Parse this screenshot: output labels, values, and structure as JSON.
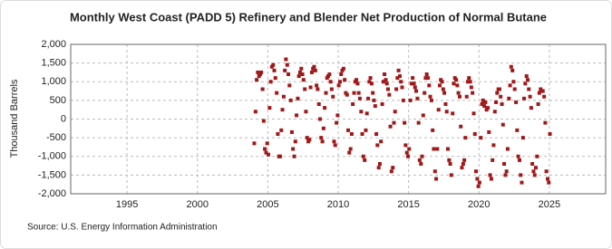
{
  "chart_data": {
    "type": "scatter",
    "title": "Monthly West Coast (PADD 5) Refinery and Blender Net Production of Normal Butane",
    "y_label": "Thousand Barrels",
    "source": "Source: U.S. Energy Information Administration",
    "color": "#a01818",
    "grid": true,
    "xlim": [
      1991,
      2029
    ],
    "ylim": [
      -2000,
      2000
    ],
    "xticks": [
      1995,
      2000,
      2005,
      2010,
      2015,
      2020,
      2025
    ],
    "yticks": [
      {
        "value": -2000,
        "label": "-2,000"
      },
      {
        "value": -1500,
        "label": "-1,500"
      },
      {
        "value": -1000,
        "label": "-1,000"
      },
      -500,
      0,
      500,
      {
        "value": 1000,
        "label": "1,000"
      },
      {
        "value": 1500,
        "label": "1,500"
      },
      {
        "value": 2000,
        "label": "2,000"
      }
    ],
    "x": [
      2004.04,
      2004.13,
      2004.21,
      2004.29,
      2004.38,
      2004.46,
      2004.54,
      2004.63,
      2004.71,
      2004.79,
      2004.88,
      2004.96,
      2005.04,
      2005.13,
      2005.21,
      2005.29,
      2005.38,
      2005.46,
      2005.54,
      2005.63,
      2005.71,
      2005.79,
      2005.88,
      2005.96,
      2006.04,
      2006.13,
      2006.21,
      2006.29,
      2006.38,
      2006.46,
      2006.54,
      2006.63,
      2006.71,
      2006.79,
      2006.88,
      2006.96,
      2007.04,
      2007.13,
      2007.21,
      2007.29,
      2007.38,
      2007.46,
      2007.54,
      2007.63,
      2007.71,
      2007.79,
      2007.88,
      2007.96,
      2008.04,
      2008.13,
      2008.21,
      2008.29,
      2008.38,
      2008.46,
      2008.54,
      2008.63,
      2008.71,
      2008.79,
      2008.88,
      2008.96,
      2009.04,
      2009.13,
      2009.21,
      2009.29,
      2009.38,
      2009.46,
      2009.54,
      2009.63,
      2009.71,
      2009.79,
      2009.88,
      2009.96,
      2010.04,
      2010.13,
      2010.21,
      2010.29,
      2010.38,
      2010.46,
      2010.54,
      2010.63,
      2010.71,
      2010.79,
      2010.88,
      2010.96,
      2011.04,
      2011.13,
      2011.21,
      2011.29,
      2011.38,
      2011.46,
      2011.54,
      2011.63,
      2011.71,
      2011.79,
      2011.88,
      2011.96,
      2012.04,
      2012.13,
      2012.21,
      2012.29,
      2012.38,
      2012.46,
      2012.54,
      2012.63,
      2012.71,
      2012.79,
      2012.88,
      2012.96,
      2013.04,
      2013.13,
      2013.21,
      2013.29,
      2013.38,
      2013.46,
      2013.54,
      2013.63,
      2013.71,
      2013.79,
      2013.88,
      2013.96,
      2014.04,
      2014.13,
      2014.21,
      2014.29,
      2014.38,
      2014.46,
      2014.54,
      2014.63,
      2014.71,
      2014.79,
      2014.88,
      2014.96,
      2015.04,
      2015.13,
      2015.21,
      2015.29,
      2015.38,
      2015.46,
      2015.54,
      2015.63,
      2015.71,
      2015.79,
      2015.88,
      2015.96,
      2016.04,
      2016.13,
      2016.21,
      2016.29,
      2016.38,
      2016.46,
      2016.54,
      2016.63,
      2016.71,
      2016.79,
      2016.88,
      2016.96,
      2017.04,
      2017.13,
      2017.21,
      2017.29,
      2017.38,
      2017.46,
      2017.54,
      2017.63,
      2017.71,
      2017.79,
      2017.88,
      2017.96,
      2018.04,
      2018.13,
      2018.21,
      2018.29,
      2018.38,
      2018.46,
      2018.54,
      2018.63,
      2018.71,
      2018.79,
      2018.88,
      2018.96,
      2019.04,
      2019.13,
      2019.21,
      2019.29,
      2019.38,
      2019.46,
      2019.54,
      2019.63,
      2019.71,
      2019.79,
      2019.88,
      2019.96,
      2020.04,
      2020.13,
      2020.21,
      2020.29,
      2020.38,
      2020.46,
      2020.54,
      2020.63,
      2020.71,
      2020.79,
      2020.88,
      2020.96,
      2021.04,
      2021.13,
      2021.21,
      2021.29,
      2021.38,
      2021.46,
      2021.54,
      2021.63,
      2021.71,
      2021.79,
      2021.88,
      2021.96,
      2022.04,
      2022.13,
      2022.21,
      2022.29,
      2022.38,
      2022.46,
      2022.54,
      2022.63,
      2022.71,
      2022.79,
      2022.88,
      2022.96,
      2023.04,
      2023.13,
      2023.21,
      2023.29,
      2023.38,
      2023.46,
      2023.54,
      2023.63,
      2023.71,
      2023.79,
      2023.88,
      2023.96,
      2024.04,
      2024.13,
      2024.21,
      2024.29,
      2024.38,
      2024.46,
      2024.54,
      2024.63,
      2024.71,
      2024.79,
      2024.88,
      2024.96,
      2025.04
    ],
    "values": [
      -650,
      200,
      1050,
      1250,
      1150,
      1200,
      1250,
      800,
      -50,
      -800,
      -900,
      -650,
      -950,
      300,
      1000,
      1400,
      1450,
      1300,
      1100,
      700,
      -400,
      -1000,
      -1000,
      -300,
      250,
      600,
      1300,
      1600,
      1450,
      1200,
      900,
      500,
      -350,
      -800,
      -1000,
      -600,
      100,
      550,
      1150,
      1250,
      1350,
      1200,
      1050,
      800,
      200,
      -500,
      -600,
      -550,
      850,
      1250,
      1350,
      1400,
      1300,
      900,
      800,
      400,
      0,
      -500,
      -600,
      -250,
      300,
      700,
      1100,
      1150,
      1200,
      1000,
      800,
      600,
      -600,
      -700,
      -100,
      100,
      900,
      1000,
      1200,
      1300,
      1350,
      1050,
      700,
      650,
      -300,
      -900,
      -800,
      -400,
      400,
      700,
      1000,
      1050,
      950,
      700,
      550,
      200,
      -400,
      -1000,
      -1100,
      -300,
      150,
      550,
      1000,
      1100,
      950,
      700,
      500,
      350,
      -400,
      -700,
      -1300,
      -1200,
      -600,
      400,
      1000,
      1200,
      1050,
      950,
      800,
      650,
      -200,
      -1400,
      -1300,
      -100,
      200,
      800,
      1100,
      1300,
      1150,
      1000,
      850,
      500,
      -100,
      -700,
      -900,
      -1000,
      -800,
      500,
      950,
      1100,
      950,
      850,
      750,
      550,
      -100,
      -1100,
      -1200,
      -1000,
      100,
      700,
      1100,
      1200,
      1100,
      900,
      600,
      500,
      -300,
      -800,
      -1400,
      -1600,
      -800,
      250,
      900,
      1050,
      1000,
      800,
      700,
      400,
      200,
      -800,
      -1100,
      -1200,
      -1500,
      150,
      950,
      1100,
      1050,
      900,
      700,
      600,
      -200,
      -1300,
      -1200,
      -1100,
      -500,
      600,
      1000,
      1100,
      1000,
      850,
      700,
      150,
      -400,
      -1400,
      -1600,
      -1800,
      -1700,
      -500,
      400,
      500,
      350,
      450,
      250,
      300,
      -350,
      -1500,
      -1600,
      -1100,
      -700,
      200,
      450,
      700,
      800,
      800,
      600,
      400,
      -150,
      -1200,
      -1500,
      -1400,
      -800,
      550,
      900,
      1400,
      1300,
      1000,
      800,
      450,
      -300,
      -1000,
      -1100,
      -1500,
      -1700,
      -500,
      550,
      950,
      1150,
      1050,
      800,
      600,
      300,
      -1200,
      -1400,
      -1500,
      -1300,
      -1000,
      400,
      700,
      800,
      750,
      750,
      600,
      -100,
      -1400,
      -1600,
      -1700,
      -400
    ]
  }
}
